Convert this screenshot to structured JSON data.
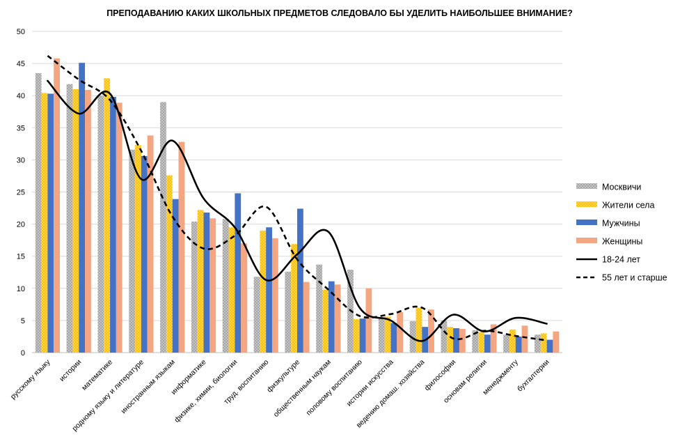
{
  "chart_data": {
    "type": "bar",
    "title": "ПРЕПОДАВАНИЮ  КАКИХ  ШКОЛЬНЫХ  ПРЕДМЕТОВ  СЛЕДОВАЛО  БЫ  УДЕЛИТЬ  НАИБОЛЬШЕЕ  ВНИМАНИЕ?",
    "xlabel": "",
    "ylabel": "",
    "ylim": [
      0,
      50
    ],
    "yticks": [
      0,
      5,
      10,
      15,
      20,
      25,
      30,
      35,
      40,
      45,
      50
    ],
    "grid": true,
    "legend_position": "right",
    "categories": [
      "русскому языку",
      "истории",
      "математике",
      "родному языку и литературе",
      "иностранным языкам",
      "информатике",
      "физике, химии, биологии",
      "труд. воспитанию",
      "физкультуре",
      "общественным наукам",
      "половому воспитанию",
      "истории искусства",
      "ведению домаш. хозяйства",
      "философии",
      "основам религии",
      "менеджменту",
      "бухгалтерии"
    ],
    "series": [
      {
        "name": "Москвичи",
        "kind": "bar",
        "color": "#a6a6a6",
        "pattern": "dotted",
        "values": [
          43.5,
          41.8,
          40.0,
          31.6,
          39.0,
          20.4,
          20.8,
          11.8,
          12.6,
          13.7,
          12.9,
          5.3,
          4.9,
          5.0,
          3.5,
          2.8,
          2.8
        ]
      },
      {
        "name": "Жители села",
        "kind": "bar",
        "color": "#ffc000",
        "pattern": "dotted",
        "values": [
          40.4,
          41.0,
          42.7,
          32.3,
          27.6,
          22.2,
          19.5,
          19.0,
          16.9,
          9.8,
          5.2,
          5.6,
          7.0,
          4.0,
          3.2,
          3.6,
          3.0
        ]
      },
      {
        "name": "Мужчины",
        "kind": "bar",
        "color": "#4472c4",
        "pattern": "solid",
        "values": [
          40.3,
          45.1,
          39.8,
          30.6,
          23.9,
          21.8,
          24.8,
          19.5,
          22.4,
          11.1,
          5.3,
          4.6,
          4.0,
          3.8,
          2.8,
          2.5,
          2.0
        ]
      },
      {
        "name": "Женщины",
        "kind": "bar",
        "color": "#f4a582",
        "pattern": "solid",
        "values": [
          45.8,
          40.9,
          38.9,
          33.8,
          32.8,
          20.9,
          17.0,
          17.8,
          11.0,
          10.6,
          10.0,
          6.3,
          6.7,
          3.7,
          4.4,
          4.2,
          3.3
        ]
      },
      {
        "name": "18-24 лет",
        "kind": "line",
        "color": "#000000",
        "style": "solid",
        "values": [
          42.3,
          37.2,
          40.3,
          27.0,
          33.0,
          24.0,
          19.5,
          11.3,
          15.3,
          18.8,
          7.0,
          5.0,
          1.8,
          5.9,
          3.3,
          5.4,
          4.5
        ]
      },
      {
        "name": "55 лет и старше",
        "kind": "line",
        "color": "#000000",
        "style": "dashed",
        "values": [
          46.2,
          42.5,
          39.3,
          31.4,
          21.2,
          16.2,
          18.2,
          22.7,
          14.5,
          9.8,
          5.7,
          6.0,
          7.0,
          2.2,
          3.4,
          2.6,
          1.9
        ]
      }
    ]
  }
}
